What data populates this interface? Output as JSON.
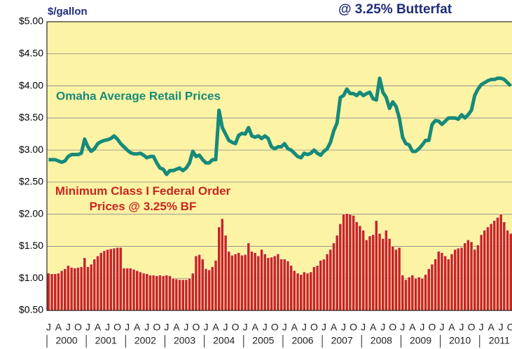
{
  "chart_data": {
    "type": "bar_line",
    "title": "@ 3.25% Butterfat",
    "y_label": "$/gallon",
    "categories": [
      "J",
      null,
      null,
      "A",
      null,
      null,
      "J",
      null,
      null,
      "O",
      null,
      null,
      "J",
      null,
      null,
      "A",
      null,
      null,
      "J",
      null,
      null,
      "O",
      null,
      null,
      "J",
      null,
      null,
      "A",
      null,
      null,
      "J",
      null,
      null,
      "O",
      null,
      null,
      "J",
      null,
      null,
      "A",
      null,
      null,
      "J",
      null,
      null,
      "O",
      null,
      null,
      "J",
      null,
      null,
      "A",
      null,
      null,
      "J",
      null,
      null,
      "O",
      null,
      null,
      "J",
      null,
      null,
      "A",
      null,
      null,
      "J",
      null,
      null,
      "O",
      null,
      null,
      "J",
      null,
      null,
      "A",
      null,
      null,
      "J",
      null,
      null,
      "O",
      null,
      null,
      "J",
      null,
      null,
      "A",
      null,
      null,
      "J",
      null,
      null,
      "O",
      null,
      null,
      "J",
      null,
      null,
      "A",
      null,
      null,
      "J",
      null,
      null,
      "O",
      null,
      null,
      "J",
      null,
      null,
      "A",
      null,
      null,
      "J",
      null,
      null,
      "O",
      null,
      null,
      "J",
      null,
      null,
      "A",
      null,
      null,
      "J",
      null,
      null,
      "O",
      null,
      null,
      "J",
      null,
      null,
      "A",
      null,
      null,
      "J",
      null,
      null,
      "O"
    ],
    "year_labels": [
      "2000",
      "2001",
      "2002",
      "2003",
      "2004",
      "2005",
      "2006",
      "2007",
      "2008",
      "2009",
      "2010",
      "2011"
    ],
    "series": [
      {
        "name": "Minimum Class I Federal Order Prices @ 3.25% BF",
        "kind": "bar",
        "color": "#c8261f",
        "values": [
          1.08,
          1.07,
          1.07,
          1.08,
          1.12,
          1.15,
          1.2,
          1.17,
          1.16,
          1.17,
          1.18,
          1.32,
          1.18,
          1.22,
          1.3,
          1.35,
          1.4,
          1.43,
          1.45,
          1.46,
          1.47,
          1.48,
          1.48,
          1.16,
          1.16,
          1.16,
          1.14,
          1.12,
          1.1,
          1.08,
          1.07,
          1.05,
          1.05,
          1.04,
          1.05,
          1.04,
          1.05,
          1.04,
          1.0,
          0.99,
          0.98,
          0.98,
          0.98,
          1.0,
          1.08,
          1.35,
          1.37,
          1.3,
          1.15,
          1.13,
          1.18,
          1.28,
          1.8,
          1.93,
          1.67,
          1.42,
          1.36,
          1.38,
          1.4,
          1.36,
          1.37,
          1.55,
          1.42,
          1.4,
          1.35,
          1.45,
          1.38,
          1.32,
          1.33,
          1.35,
          1.38,
          1.3,
          1.3,
          1.27,
          1.2,
          1.12,
          1.08,
          1.06,
          1.1,
          1.08,
          1.1,
          1.18,
          1.2,
          1.28,
          1.3,
          1.38,
          1.45,
          1.55,
          1.67,
          1.85,
          2.0,
          2.01,
          2.0,
          1.98,
          1.88,
          1.82,
          1.75,
          1.6,
          1.66,
          1.68,
          1.9,
          1.7,
          1.62,
          1.75,
          1.62,
          1.5,
          1.45,
          1.48,
          1.05,
          0.98,
          1.02,
          1.05,
          1.0,
          1.02,
          1.0,
          1.06,
          1.15,
          1.22,
          1.3,
          1.42,
          1.4,
          1.35,
          1.3,
          1.38,
          1.45,
          1.47,
          1.48,
          1.55,
          1.6,
          1.57,
          1.45,
          1.52,
          1.68,
          1.75,
          1.8,
          1.85,
          1.9,
          1.95,
          2.0,
          1.88,
          1.75,
          1.7
        ]
      },
      {
        "name": "Omaha Average Retail Prices",
        "kind": "line",
        "color": "#168a7a",
        "values": [
          2.85,
          2.85,
          2.85,
          2.83,
          2.81,
          2.83,
          2.9,
          2.93,
          2.93,
          2.93,
          2.95,
          3.17,
          3.05,
          2.98,
          3.02,
          3.1,
          3.13,
          3.15,
          3.16,
          3.18,
          3.22,
          3.17,
          3.1,
          3.05,
          3.0,
          2.96,
          2.94,
          2.94,
          2.95,
          2.92,
          2.88,
          2.9,
          2.9,
          2.8,
          2.72,
          2.7,
          2.62,
          2.68,
          2.68,
          2.7,
          2.72,
          2.68,
          2.72,
          2.8,
          2.98,
          2.9,
          2.92,
          2.85,
          2.8,
          2.8,
          2.85,
          2.85,
          3.62,
          3.35,
          3.25,
          3.15,
          3.12,
          3.1,
          3.23,
          3.26,
          3.25,
          3.35,
          3.22,
          3.2,
          3.22,
          3.18,
          3.22,
          3.18,
          3.05,
          3.02,
          3.05,
          3.05,
          3.1,
          3.02,
          3.0,
          2.95,
          2.9,
          2.88,
          2.95,
          2.93,
          2.95,
          3.0,
          2.95,
          2.92,
          2.98,
          3.02,
          3.12,
          3.3,
          3.42,
          3.82,
          3.85,
          3.95,
          3.88,
          3.88,
          3.85,
          3.9,
          3.85,
          3.88,
          3.9,
          3.8,
          3.78,
          4.12,
          3.9,
          3.82,
          3.65,
          3.75,
          3.68,
          3.5,
          3.2,
          3.1,
          3.08,
          2.98,
          2.98,
          3.02,
          3.08,
          3.15,
          3.15,
          3.4,
          3.46,
          3.45,
          3.4,
          3.45,
          3.5,
          3.5,
          3.5,
          3.48,
          3.55,
          3.5,
          3.55,
          3.62,
          3.85,
          3.95,
          4.02,
          4.05,
          4.08,
          4.1,
          4.1,
          4.12,
          4.12,
          4.1,
          4.05,
          4.0
        ]
      }
    ],
    "ylim": [
      0.5,
      5.0
    ],
    "yticks": [
      {
        "value": 0.5,
        "label": "$0.50"
      },
      {
        "value": 1.0,
        "label": "$1.00"
      },
      {
        "value": 1.5,
        "label": "$1.50"
      },
      {
        "value": 2.0,
        "label": "$2.00"
      },
      {
        "value": 2.5,
        "label": "$2.50"
      },
      {
        "value": 3.0,
        "label": "$3.00"
      },
      {
        "value": 3.5,
        "label": "$3.50"
      },
      {
        "value": 4.0,
        "label": "$4.00"
      },
      {
        "value": 4.5,
        "label": "$4.50"
      },
      {
        "value": 5.0,
        "label": "$5.00"
      }
    ],
    "grid": true,
    "plot_background": "#fcf3a5"
  }
}
